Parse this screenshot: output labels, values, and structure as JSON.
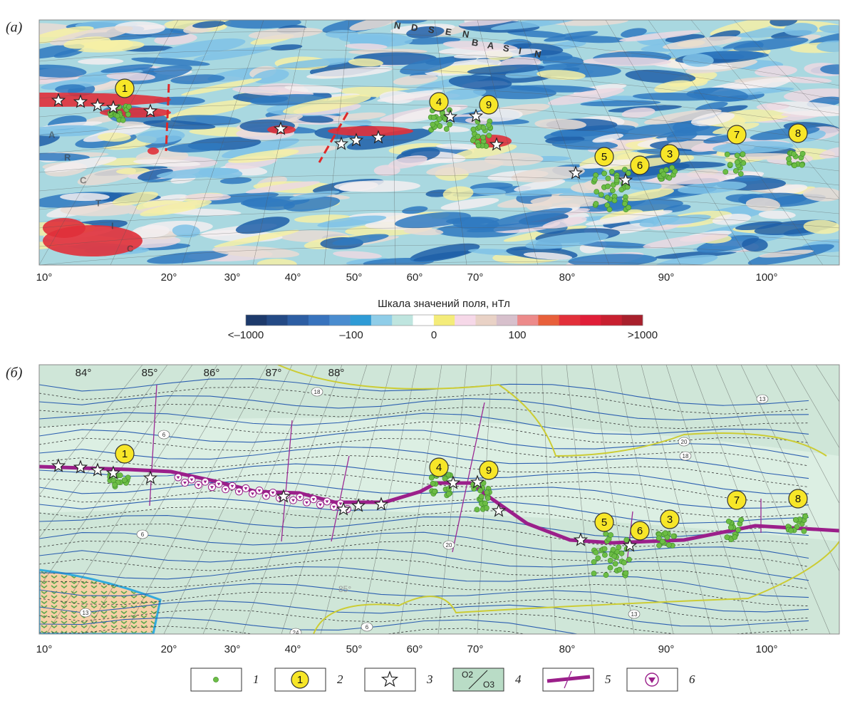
{
  "panel_a": {
    "label": "(а)",
    "basin_letters": [
      "N",
      "D",
      "S",
      "E",
      "N",
      "B",
      "A",
      "S",
      "I",
      "N"
    ],
    "arctic_letters": [
      "A",
      "R",
      "C",
      "T",
      "I",
      "C"
    ],
    "longitudes": [
      "10°",
      "20°",
      "30°",
      "40°",
      "50°",
      "60°",
      "70°",
      "80°",
      "90°",
      "100°"
    ],
    "sites": [
      "1",
      "4",
      "9",
      "5",
      "6",
      "3",
      "7",
      "8"
    ]
  },
  "colorbar": {
    "title": "Шкала значений поля, нТл",
    "labels": [
      "<–1000",
      "–100",
      "0",
      "100",
      ">1000"
    ],
    "colors": [
      "#1d3a6b",
      "#244a85",
      "#2d5ea3",
      "#3873bd",
      "#4a8ccf",
      "#2f9bd6",
      "#8fcde8",
      "#bfe5df",
      "#ffffff",
      "#f4ec7a",
      "#f6d8e8",
      "#e9d2c6",
      "#d7c0cc",
      "#ec8a8a",
      "#e8603b",
      "#e2303a",
      "#e01e38",
      "#c82030",
      "#a8202c"
    ]
  },
  "panel_b": {
    "label": "(б)",
    "latitudes": [
      "84°",
      "85°",
      "86°",
      "87°",
      "88°"
    ],
    "longitudes": [
      "10°",
      "20°",
      "30°",
      "40°",
      "50°",
      "60°",
      "70°",
      "80°",
      "90°",
      "100°"
    ],
    "sites": [
      "1",
      "4",
      "9",
      "5",
      "6",
      "3",
      "7",
      "8"
    ],
    "contour_labels": [
      "6",
      "6",
      "13",
      "18",
      "20",
      "13",
      "6",
      "20",
      "18",
      "13",
      "24"
    ],
    "inner_latitude": "85°"
  },
  "legend": {
    "numbers": [
      "1",
      "2",
      "3",
      "4",
      "5",
      "6"
    ],
    "site_example": "1",
    "units": [
      "O2",
      "O3"
    ]
  }
}
